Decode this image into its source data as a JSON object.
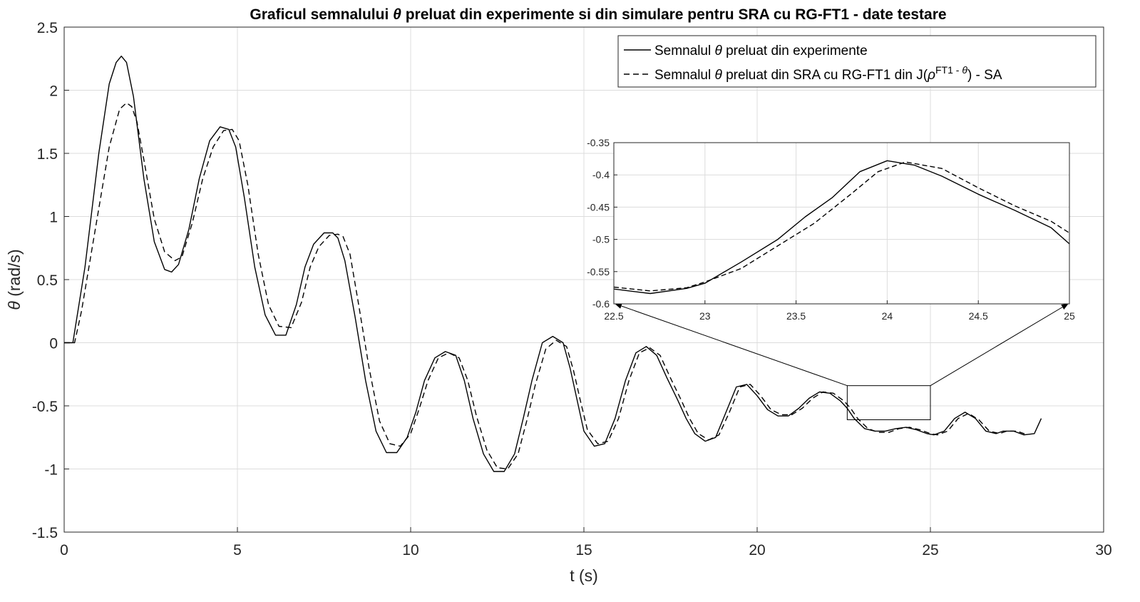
{
  "chart_data": {
    "type": "line",
    "title_prefix": "Graficul semnalului ",
    "title_symbol": "θ",
    "title_suffix": " preluat din experimente si din simulare pentru SRA cu RG-FT1  - date testare",
    "xlabel": "t (s)",
    "ylabel_symbol": "θ",
    "ylabel_unit": " (rad/s)",
    "xlim": [
      0,
      30
    ],
    "ylim": [
      -1.5,
      2.5
    ],
    "xticks": [
      "0",
      "5",
      "10",
      "15",
      "20",
      "25",
      "30"
    ],
    "yticks": [
      "-1.5",
      "-1",
      "-0.5",
      "0",
      "0.5",
      "1",
      "1.5",
      "2",
      "2.5"
    ],
    "grid": true,
    "legend_position": "top-right",
    "legend": [
      {
        "style": "solid",
        "parts": [
          {
            "t": "Semnalul "
          },
          {
            "t": "θ",
            "italic": true
          },
          {
            "t": " preluat din experimente"
          }
        ]
      },
      {
        "style": "dashed",
        "parts": [
          {
            "t": "Semnalul "
          },
          {
            "t": "θ",
            "italic": true
          },
          {
            "t": " preluat din SRA cu RG-FT1 din J("
          },
          {
            "t": "ρ",
            "italic": true
          },
          {
            "t": "FT1 - ",
            "sup": true
          },
          {
            "t": "θ",
            "sup": true,
            "italic": true
          },
          {
            "t": ") - SA"
          }
        ]
      }
    ],
    "series": [
      {
        "style": "solid",
        "x": [
          0,
          0.25,
          0.6,
          1.0,
          1.3,
          1.5,
          1.65,
          1.8,
          2.0,
          2.3,
          2.6,
          2.9,
          3.1,
          3.3,
          3.6,
          3.9,
          4.2,
          4.5,
          4.75,
          4.95,
          5.2,
          5.5,
          5.8,
          6.1,
          6.4,
          6.7,
          6.95,
          7.2,
          7.5,
          7.75,
          7.9,
          8.1,
          8.4,
          8.7,
          9.0,
          9.3,
          9.6,
          9.9,
          10.15,
          10.4,
          10.7,
          11.0,
          11.3,
          11.55,
          11.8,
          12.1,
          12.4,
          12.7,
          13.0,
          13.25,
          13.5,
          13.8,
          14.1,
          14.4,
          14.6,
          14.8,
          15.0,
          15.3,
          15.6,
          15.9,
          16.2,
          16.5,
          16.8,
          17.1,
          17.4,
          17.7,
          17.95,
          18.2,
          18.5,
          18.8,
          19.1,
          19.4,
          19.7,
          20.0,
          20.3,
          20.6,
          20.9,
          21.2,
          21.5,
          21.8,
          22.1,
          22.4,
          22.6,
          22.8,
          23.1,
          23.4,
          23.7,
          24.0,
          24.3,
          24.6,
          24.9,
          25.1,
          25.4,
          25.7,
          26.0,
          26.3,
          26.6,
          26.9,
          27.1,
          27.4,
          27.7,
          28.0,
          28.2
        ],
        "y": [
          0,
          0,
          0.6,
          1.5,
          2.05,
          2.22,
          2.27,
          2.22,
          1.95,
          1.3,
          0.8,
          0.58,
          0.56,
          0.62,
          0.9,
          1.3,
          1.6,
          1.71,
          1.69,
          1.55,
          1.15,
          0.6,
          0.22,
          0.06,
          0.06,
          0.3,
          0.6,
          0.78,
          0.87,
          0.87,
          0.83,
          0.65,
          0.2,
          -0.3,
          -0.7,
          -0.87,
          -0.87,
          -0.75,
          -0.55,
          -0.3,
          -0.12,
          -0.07,
          -0.1,
          -0.3,
          -0.6,
          -0.88,
          -1.02,
          -1.02,
          -0.88,
          -0.6,
          -0.3,
          0.0,
          0.05,
          0.0,
          -0.2,
          -0.45,
          -0.7,
          -0.82,
          -0.8,
          -0.6,
          -0.3,
          -0.08,
          -0.03,
          -0.1,
          -0.28,
          -0.45,
          -0.6,
          -0.72,
          -0.78,
          -0.75,
          -0.55,
          -0.35,
          -0.33,
          -0.42,
          -0.53,
          -0.58,
          -0.58,
          -0.52,
          -0.44,
          -0.39,
          -0.4,
          -0.46,
          -0.52,
          -0.6,
          -0.68,
          -0.7,
          -0.7,
          -0.68,
          -0.67,
          -0.69,
          -0.72,
          -0.73,
          -0.7,
          -0.6,
          -0.55,
          -0.6,
          -0.7,
          -0.72,
          -0.7,
          -0.7,
          -0.73,
          -0.72,
          -0.6
        ]
      },
      {
        "style": "dashed",
        "x": [
          0,
          0.3,
          0.5,
          0.9,
          1.3,
          1.6,
          1.8,
          1.95,
          2.1,
          2.3,
          2.6,
          2.9,
          3.2,
          3.4,
          3.7,
          4.0,
          4.3,
          4.6,
          4.85,
          5.05,
          5.3,
          5.6,
          5.9,
          6.2,
          6.55,
          6.85,
          7.1,
          7.35,
          7.65,
          7.9,
          8.05,
          8.25,
          8.5,
          8.8,
          9.1,
          9.4,
          9.7,
          10.0,
          10.25,
          10.5,
          10.8,
          11.1,
          11.4,
          11.65,
          11.9,
          12.2,
          12.5,
          12.8,
          13.1,
          13.35,
          13.6,
          13.9,
          14.2,
          14.5,
          14.7,
          14.9,
          15.1,
          15.4,
          15.7,
          16.0,
          16.3,
          16.6,
          16.9,
          17.2,
          17.5,
          17.8,
          18.05,
          18.3,
          18.6,
          18.9,
          19.2,
          19.5,
          19.8,
          20.1,
          20.4,
          20.7,
          21.0,
          21.3,
          21.6,
          21.9,
          22.2,
          22.5,
          22.7,
          22.9,
          23.2,
          23.5,
          23.8,
          24.1,
          24.4,
          24.7,
          25.0,
          25.2,
          25.5,
          25.8,
          26.1,
          26.4,
          26.7,
          27.0,
          27.2,
          27.5,
          27.8
        ],
        "y": [
          0,
          0,
          0.25,
          0.9,
          1.55,
          1.85,
          1.9,
          1.87,
          1.75,
          1.45,
          0.98,
          0.72,
          0.65,
          0.68,
          0.95,
          1.3,
          1.55,
          1.68,
          1.69,
          1.6,
          1.25,
          0.7,
          0.3,
          0.13,
          0.12,
          0.32,
          0.6,
          0.76,
          0.85,
          0.86,
          0.84,
          0.7,
          0.3,
          -0.2,
          -0.62,
          -0.8,
          -0.82,
          -0.72,
          -0.52,
          -0.3,
          -0.12,
          -0.08,
          -0.12,
          -0.3,
          -0.58,
          -0.85,
          -0.99,
          -1.0,
          -0.88,
          -0.62,
          -0.33,
          -0.05,
          0.02,
          -0.03,
          -0.22,
          -0.46,
          -0.69,
          -0.8,
          -0.78,
          -0.6,
          -0.3,
          -0.08,
          -0.04,
          -0.1,
          -0.28,
          -0.45,
          -0.6,
          -0.72,
          -0.77,
          -0.73,
          -0.55,
          -0.35,
          -0.33,
          -0.42,
          -0.53,
          -0.57,
          -0.57,
          -0.52,
          -0.44,
          -0.39,
          -0.4,
          -0.46,
          -0.52,
          -0.6,
          -0.68,
          -0.71,
          -0.71,
          -0.68,
          -0.67,
          -0.69,
          -0.72,
          -0.73,
          -0.7,
          -0.6,
          -0.56,
          -0.61,
          -0.7,
          -0.72,
          -0.7,
          -0.7,
          -0.73
        ]
      }
    ],
    "inset": {
      "xlim": [
        22.5,
        25
      ],
      "ylim": [
        -0.6,
        -0.35
      ],
      "xticks": [
        "22.5",
        "23",
        "23.5",
        "24",
        "24.5",
        "25"
      ],
      "yticks": [
        "-0.6",
        "-0.55",
        "-0.5",
        "-0.45",
        "-0.4",
        "-0.35"
      ],
      "zoom_box": {
        "xlim": [
          22.6,
          25.0
        ],
        "ylim": [
          -0.61,
          -0.34
        ]
      },
      "series": [
        {
          "style": "solid",
          "x": [
            22.5,
            22.7,
            22.9,
            23.0,
            23.2,
            23.4,
            23.55,
            23.7,
            23.85,
            24.0,
            24.15,
            24.3,
            24.5,
            24.7,
            24.9,
            25.0
          ],
          "y": [
            -0.577,
            -0.584,
            -0.576,
            -0.568,
            -0.535,
            -0.5,
            -0.465,
            -0.435,
            -0.395,
            -0.378,
            -0.385,
            -0.402,
            -0.43,
            -0.455,
            -0.482,
            -0.507
          ]
        },
        {
          "style": "dashed",
          "x": [
            22.5,
            22.7,
            22.9,
            23.0,
            23.2,
            23.4,
            23.6,
            23.8,
            23.95,
            24.1,
            24.3,
            24.5,
            24.7,
            24.9,
            25.0
          ],
          "y": [
            -0.574,
            -0.58,
            -0.575,
            -0.566,
            -0.545,
            -0.51,
            -0.475,
            -0.43,
            -0.395,
            -0.38,
            -0.39,
            -0.42,
            -0.448,
            -0.472,
            -0.49
          ]
        }
      ]
    }
  }
}
